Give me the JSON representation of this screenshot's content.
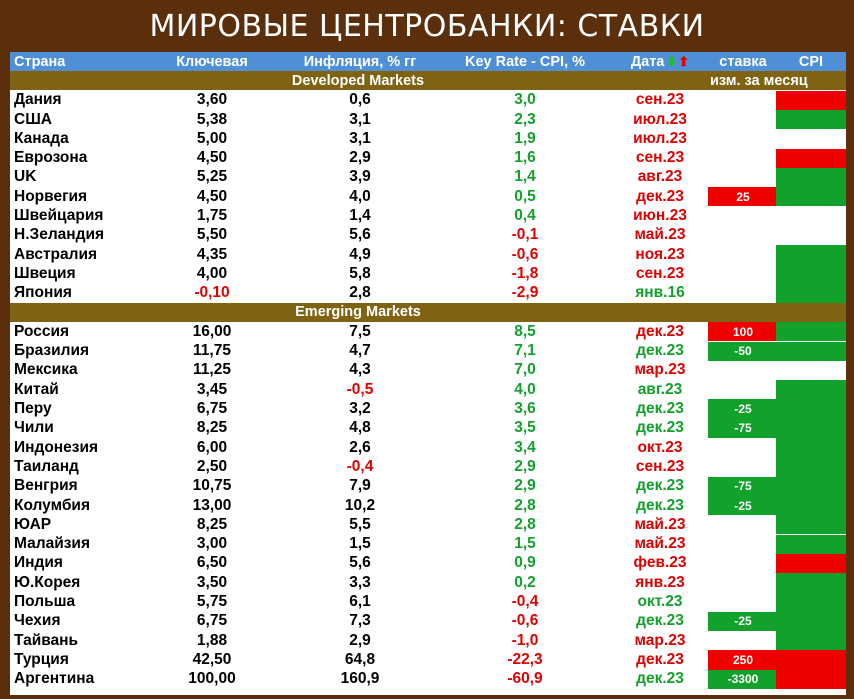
{
  "title": "МИРОВЫЕ ЦЕНТРОБАНКИ: СТАВКИ",
  "header": {
    "country": "Страна",
    "key": "Ключевая",
    "inflation": "Инфляция, % гг",
    "diff": "Key Rate - CPI, %",
    "date": "Дата",
    "change": "ставка",
    "cpi": "CPI"
  },
  "sections": {
    "developed": "Developed Markets",
    "developed_right": "изм. за месяц",
    "emerging": "Emerging Markets"
  },
  "colors": {
    "red": "#e00000",
    "green": "#12a12b",
    "bg_red": "#ee0000",
    "bg_green": "#12a12b"
  },
  "developed": [
    {
      "country": "Дания",
      "key": "3,60",
      "infl": "0,6",
      "diff": "3,0",
      "diff_c": "green",
      "date": "сен.23",
      "date_c": "red",
      "chg": "",
      "chg_bg": "",
      "cpi": "red"
    },
    {
      "country": "США",
      "key": "5,38",
      "infl": "3,1",
      "diff": "2,3",
      "diff_c": "green",
      "date": "июл.23",
      "date_c": "red",
      "chg": "",
      "chg_bg": "",
      "cpi": "green"
    },
    {
      "country": "Канада",
      "key": "5,00",
      "infl": "3,1",
      "diff": "1,9",
      "diff_c": "green",
      "date": "июл.23",
      "date_c": "red",
      "chg": "",
      "chg_bg": "",
      "cpi": ""
    },
    {
      "country": "Еврозона",
      "key": "4,50",
      "infl": "2,9",
      "diff": "1,6",
      "diff_c": "green",
      "date": "сен.23",
      "date_c": "red",
      "chg": "",
      "chg_bg": "",
      "cpi": "red"
    },
    {
      "country": "UK",
      "key": "5,25",
      "infl": "3,9",
      "diff": "1,4",
      "diff_c": "green",
      "date": "авг.23",
      "date_c": "red",
      "chg": "",
      "chg_bg": "",
      "cpi": "green"
    },
    {
      "country": "Норвегия",
      "key": "4,50",
      "infl": "4,0",
      "diff": "0,5",
      "diff_c": "green",
      "date": "дек.23",
      "date_c": "red",
      "chg": "25",
      "chg_bg": "red",
      "cpi": "green"
    },
    {
      "country": "Швейцария",
      "key": "1,75",
      "infl": "1,4",
      "diff": "0,4",
      "diff_c": "green",
      "date": "июн.23",
      "date_c": "red",
      "chg": "",
      "chg_bg": "",
      "cpi": ""
    },
    {
      "country": "Н.Зеландия",
      "key": "5,50",
      "infl": "5,6",
      "diff": "-0,1",
      "diff_c": "red",
      "date": "май.23",
      "date_c": "red",
      "chg": "",
      "chg_bg": "",
      "cpi": ""
    },
    {
      "country": "Австралия",
      "key": "4,35",
      "infl": "4,9",
      "diff": "-0,6",
      "diff_c": "red",
      "date": "ноя.23",
      "date_c": "red",
      "chg": "",
      "chg_bg": "",
      "cpi": "green"
    },
    {
      "country": "Швеция",
      "key": "4,00",
      "infl": "5,8",
      "diff": "-1,8",
      "diff_c": "red",
      "date": "сен.23",
      "date_c": "red",
      "chg": "",
      "chg_bg": "",
      "cpi": "green"
    },
    {
      "country": "Япония",
      "key": "-0,10",
      "key_c": "red",
      "infl": "2,8",
      "diff": "-2,9",
      "diff_c": "red",
      "date": "янв.16",
      "date_c": "green",
      "chg": "",
      "chg_bg": "",
      "cpi": "green"
    }
  ],
  "emerging": [
    {
      "country": "Россия",
      "key": "16,00",
      "infl": "7,5",
      "diff": "8,5",
      "diff_c": "green",
      "date": "дек.23",
      "date_c": "red",
      "chg": "100",
      "chg_bg": "red",
      "cpi": "green"
    },
    {
      "country": "Бразилия",
      "key": "11,75",
      "infl": "4,7",
      "diff": "7,1",
      "diff_c": "green",
      "date": "дек.23",
      "date_c": "green",
      "chg": "-50",
      "chg_bg": "green",
      "cpi": "green"
    },
    {
      "country": "Мексика",
      "key": "11,25",
      "infl": "4,3",
      "diff": "7,0",
      "diff_c": "green",
      "date": "мар.23",
      "date_c": "red",
      "chg": "",
      "chg_bg": "",
      "cpi": ""
    },
    {
      "country": "Китай",
      "key": "3,45",
      "infl": "-0,5",
      "infl_c": "red",
      "diff": "4,0",
      "diff_c": "green",
      "date": "авг.23",
      "date_c": "green",
      "chg": "",
      "chg_bg": "",
      "cpi": "green"
    },
    {
      "country": "Перу",
      "key": "6,75",
      "infl": "3,2",
      "diff": "3,6",
      "diff_c": "green",
      "date": "дек.23",
      "date_c": "green",
      "chg": "-25",
      "chg_bg": "green",
      "cpi": "green"
    },
    {
      "country": "Чили",
      "key": "8,25",
      "infl": "4,8",
      "diff": "3,5",
      "diff_c": "green",
      "date": "дек.23",
      "date_c": "green",
      "chg": "-75",
      "chg_bg": "green",
      "cpi": "green"
    },
    {
      "country": "Индонезия",
      "key": "6,00",
      "infl": "2,6",
      "diff": "3,4",
      "diff_c": "green",
      "date": "окт.23",
      "date_c": "red",
      "chg": "",
      "chg_bg": "",
      "cpi": "green"
    },
    {
      "country": "Таиланд",
      "key": "2,50",
      "infl": "-0,4",
      "infl_c": "red",
      "diff": "2,9",
      "diff_c": "green",
      "date": "сен.23",
      "date_c": "red",
      "chg": "",
      "chg_bg": "",
      "cpi": "green"
    },
    {
      "country": "Венгрия",
      "key": "10,75",
      "infl": "7,9",
      "diff": "2,9",
      "diff_c": "green",
      "date": "дек.23",
      "date_c": "green",
      "chg": "-75",
      "chg_bg": "green",
      "cpi": "green"
    },
    {
      "country": "Колумбия",
      "key": "13,00",
      "infl": "10,2",
      "diff": "2,8",
      "diff_c": "green",
      "date": "дек.23",
      "date_c": "green",
      "chg": "-25",
      "chg_bg": "green",
      "cpi": "green"
    },
    {
      "country": "ЮАР",
      "key": "8,25",
      "infl": "5,5",
      "diff": "2,8",
      "diff_c": "green",
      "date": "май.23",
      "date_c": "red",
      "chg": "",
      "chg_bg": "",
      "cpi": "green"
    },
    {
      "country": "Малайзия",
      "key": "3,00",
      "infl": "1,5",
      "diff": "1,5",
      "diff_c": "green",
      "date": "май.23",
      "date_c": "red",
      "chg": "",
      "chg_bg": "",
      "cpi": "green"
    },
    {
      "country": "Индия",
      "key": "6,50",
      "infl": "5,6",
      "diff": "0,9",
      "diff_c": "green",
      "date": "фев.23",
      "date_c": "red",
      "chg": "",
      "chg_bg": "",
      "cpi": "red"
    },
    {
      "country": "Ю.Корея",
      "key": "3,50",
      "infl": "3,3",
      "diff": "0,2",
      "diff_c": "green",
      "date": "янв.23",
      "date_c": "red",
      "chg": "",
      "chg_bg": "",
      "cpi": "green"
    },
    {
      "country": "Польша",
      "key": "5,75",
      "infl": "6,1",
      "diff": "-0,4",
      "diff_c": "red",
      "date": "окт.23",
      "date_c": "green",
      "chg": "",
      "chg_bg": "",
      "cpi": "green"
    },
    {
      "country": "Чехия",
      "key": "6,75",
      "infl": "7,3",
      "diff": "-0,6",
      "diff_c": "red",
      "date": "дек.23",
      "date_c": "green",
      "chg": "-25",
      "chg_bg": "green",
      "cpi": "green"
    },
    {
      "country": "Тайвань",
      "key": "1,88",
      "infl": "2,9",
      "diff": "-1,0",
      "diff_c": "red",
      "date": "мар.23",
      "date_c": "red",
      "chg": "",
      "chg_bg": "",
      "cpi": "green"
    },
    {
      "country": "Турция",
      "key": "42,50",
      "infl": "64,8",
      "diff": "-22,3",
      "diff_c": "red",
      "date": "дек.23",
      "date_c": "red",
      "chg": "250",
      "chg_bg": "red",
      "cpi": "red"
    },
    {
      "country": "Аргентина",
      "key": "100,00",
      "infl": "160,9",
      "diff": "-60,9",
      "diff_c": "red",
      "date": "дек.23",
      "date_c": "green",
      "chg": "-3300",
      "chg_bg": "green",
      "cpi": "red"
    }
  ]
}
